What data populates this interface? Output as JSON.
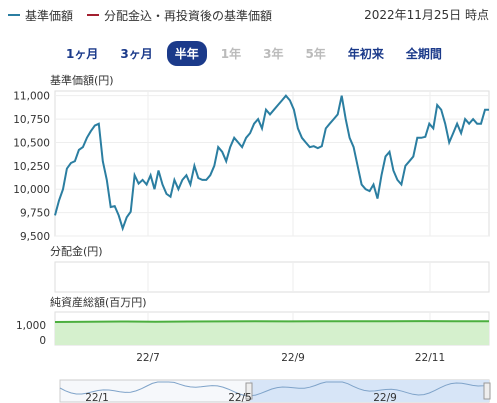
{
  "legend": {
    "nav_label": "基準価額",
    "nav_color": "#2b7ea1",
    "reinvest_label": "分配金込・再投資後の基準価額",
    "reinvest_color": "#a31f2f"
  },
  "as_of": "2022年11月25日 時点",
  "tabs": [
    {
      "label": "1ヶ月",
      "state": "normal"
    },
    {
      "label": "3ヶ月",
      "state": "normal"
    },
    {
      "label": "半年",
      "state": "active"
    },
    {
      "label": "1年",
      "state": "disabled"
    },
    {
      "label": "3年",
      "state": "disabled"
    },
    {
      "label": "5年",
      "state": "disabled"
    },
    {
      "label": "年初来",
      "state": "normal"
    },
    {
      "label": "全期間",
      "state": "normal"
    }
  ],
  "chart_data": [
    {
      "type": "line",
      "title": "基準価額(円)",
      "yticks": [
        "11,000",
        "10,750",
        "10,500",
        "10,250",
        "10,000",
        "9,750",
        "9,500"
      ],
      "ylim": [
        9500,
        11050
      ],
      "series": [
        {
          "values": [
            9720,
            9880,
            10000,
            10220,
            10280,
            10300,
            10420,
            10450,
            10550,
            10620,
            10680,
            10700,
            10300,
            10100,
            9810,
            9820,
            9720,
            9580,
            9700,
            9760,
            10150,
            10060,
            10100,
            10050,
            10150,
            10000,
            10200,
            10050,
            9950,
            9920,
            10100,
            10000,
            10100,
            10150,
            10050,
            10250,
            10120,
            10100,
            10100,
            10150,
            10250,
            10450,
            10400,
            10300,
            10450,
            10550,
            10500,
            10450,
            10550,
            10600,
            10700,
            10750,
            10650,
            10850,
            10800,
            10850,
            10900,
            10950,
            11000,
            10950,
            10850,
            10650,
            10550,
            10500,
            10450,
            10460,
            10440,
            10460,
            10650,
            10700,
            10750,
            10800,
            11000,
            10750,
            10550,
            10450,
            10250,
            10050,
            10000,
            9980,
            10050,
            9900,
            10150,
            10350,
            10400,
            10200,
            10100,
            10050,
            10250,
            10300,
            10350,
            10550,
            10550,
            10560,
            10700,
            10650,
            10900,
            10850,
            10700,
            10500,
            10600,
            10700,
            10600,
            10750,
            10700,
            10750,
            10700,
            10700,
            10850,
            10850
          ]
        }
      ],
      "xticks": [
        "22/7",
        "22/9",
        "22/11"
      ]
    },
    {
      "type": "bar",
      "title": "分配金(円)"
    },
    {
      "type": "area",
      "title": "純資産総額(百万円)",
      "yticks": [
        "1,000",
        "0"
      ],
      "ylim": [
        0,
        1000
      ],
      "color": "#4caf3f"
    }
  ],
  "navigator": {
    "labels": [
      "22/1",
      "22/5",
      "22/9"
    ]
  }
}
